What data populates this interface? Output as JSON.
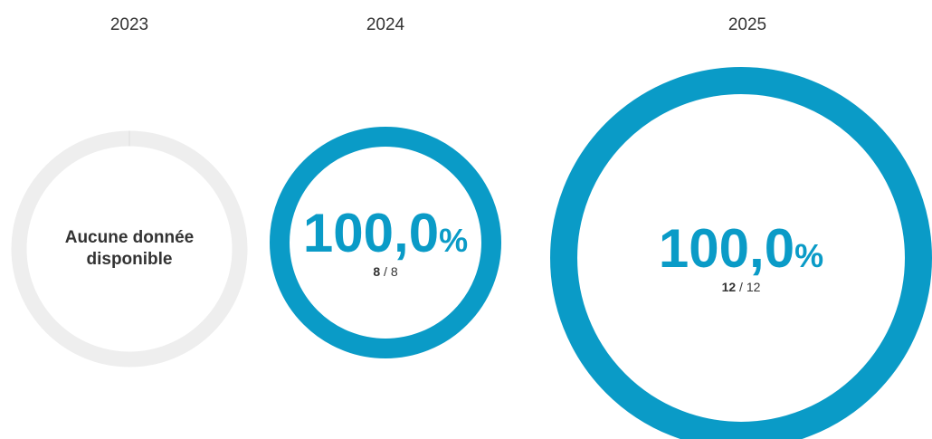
{
  "chart_data": [
    {
      "type": "gauge",
      "title": "2023",
      "value": null,
      "label": "Aucune donnée disponible",
      "track_color": "#eeeeee",
      "color": "#0a9bc7"
    },
    {
      "type": "gauge",
      "title": "2024",
      "value": 100,
      "value_label": "100,0",
      "unit": "%",
      "count": 8,
      "total": 8,
      "track_color": "#eeeeee",
      "color": "#0a9bc7"
    },
    {
      "type": "gauge",
      "title": "2025",
      "value": 100,
      "value_label": "100,0",
      "unit": "%",
      "count": 12,
      "total": 12,
      "track_color": "#eeeeee",
      "color": "#0a9bc7"
    }
  ]
}
